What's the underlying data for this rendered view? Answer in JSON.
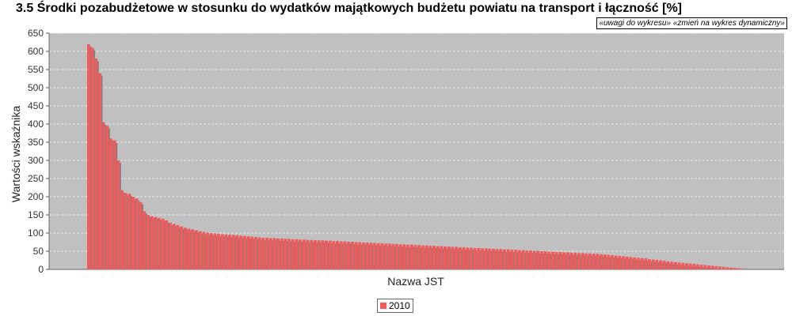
{
  "page": {
    "title": "3.5 Środki pozabudżetowe w stosunku do wydatków majątkowych budżetu powiatu na transport i łączność [%]",
    "links": [
      "«uwagi do wykresu»",
      "«zmień na wykres dynamiczny»"
    ]
  },
  "colors": {
    "plot_bg": "#c0c0c0",
    "bar": "#f25b5b",
    "bar_shadow": "#808080",
    "grid": "#e6e6e6"
  },
  "chart_data": {
    "type": "bar",
    "title": "3.5 Środki pozabudżetowe w stosunku do wydatków majątkowych budżetu powiatu na transport i łączność [%]",
    "xlabel": "Nazwa JST",
    "ylabel": "Wartości wskaźnika",
    "ylim": [
      0,
      650
    ],
    "yticks": [
      "0",
      "50",
      "100",
      "150",
      "200",
      "250",
      "300",
      "350",
      "400",
      "450",
      "500",
      "550",
      "600",
      "650"
    ],
    "grid": true,
    "legend_position": "bottom",
    "series": [
      {
        "name": "2010",
        "values": [
          620,
          610,
          580,
          540,
          405,
          395,
          360,
          355,
          300,
          218,
          210,
          208,
          200,
          195,
          185,
          160,
          150,
          146,
          144,
          142,
          140,
          135,
          128,
          125,
          122,
          118,
          115,
          112,
          110,
          108,
          105,
          103,
          101,
          100,
          99,
          98,
          97,
          96,
          95,
          95,
          94,
          93,
          92,
          91,
          90,
          89,
          88,
          87,
          87,
          86,
          86,
          85,
          85,
          84,
          84,
          83,
          83,
          82,
          82,
          81,
          81,
          80,
          80,
          80,
          79,
          79,
          78,
          78,
          77,
          77,
          76,
          76,
          75,
          75,
          74,
          74,
          73,
          73,
          72,
          72,
          71,
          71,
          70,
          70,
          69,
          69,
          68,
          68,
          67,
          67,
          66,
          66,
          65,
          65,
          64,
          64,
          63,
          63,
          62,
          62,
          61,
          61,
          60,
          60,
          59,
          59,
          58,
          58,
          57,
          57,
          56,
          56,
          55,
          55,
          54,
          54,
          53,
          53,
          52,
          52,
          51,
          51,
          50,
          50,
          49,
          49,
          48,
          48,
          47,
          47,
          46,
          46,
          45,
          45,
          44,
          44,
          43,
          43,
          42,
          41,
          40,
          39,
          38,
          37,
          36,
          35,
          34,
          33,
          32,
          31,
          30,
          28,
          27,
          26,
          25,
          24,
          22,
          21,
          20,
          19,
          18,
          17,
          16,
          15,
          14,
          13,
          12,
          11,
          10,
          9,
          8,
          7,
          6,
          5,
          4,
          3,
          2
        ]
      }
    ]
  }
}
